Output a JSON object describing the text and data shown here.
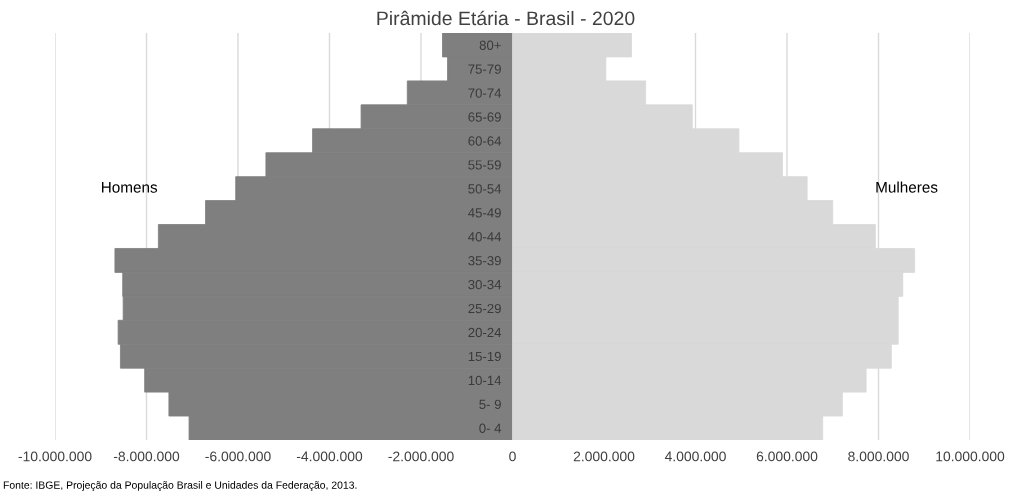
{
  "chart_data": {
    "type": "bar",
    "orientation": "horizontal",
    "stacked": true,
    "title": "Pirâmide Etária - Brasil - 2020",
    "categories": [
      "80+",
      "75-79",
      "70-74",
      "65-69",
      "60-64",
      "55-59",
      "50-54",
      "45-49",
      "40-44",
      "35-39",
      "30-34",
      "25-29",
      "20-24",
      "15-19",
      "10-14",
      "5- 9",
      "0- 4"
    ],
    "series": [
      {
        "name": "Homens",
        "color": "#7f7f7f",
        "values": [
          -1530000,
          -1420000,
          -2300000,
          -3310000,
          -4370000,
          -5390000,
          -6050000,
          -6710000,
          -7740000,
          -8690000,
          -8520000,
          -8510000,
          -8620000,
          -8570000,
          -8040000,
          -7510000,
          -7070000
        ]
      },
      {
        "name": "Mulheres",
        "color": "#d9d9d9",
        "values": [
          2600000,
          2040000,
          2910000,
          3930000,
          4950000,
          5900000,
          6440000,
          7000000,
          7930000,
          8790000,
          8530000,
          8430000,
          8430000,
          8280000,
          7730000,
          7210000,
          6780000
        ]
      }
    ],
    "xlim": [
      -10000000,
      10000000
    ],
    "xticks": [
      {
        "value": -10000000,
        "label": "-10.000.000"
      },
      {
        "value": -8000000,
        "label": "-8.000.000"
      },
      {
        "value": -6000000,
        "label": "-6.000.000"
      },
      {
        "value": -4000000,
        "label": "-4.000.000"
      },
      {
        "value": -2000000,
        "label": "-2.000.000"
      },
      0,
      {
        "value": 2000000,
        "label": "2.000.000"
      },
      {
        "value": 4000000,
        "label": "4.000.000"
      },
      {
        "value": 6000000,
        "label": "6.000.000"
      },
      {
        "value": 8000000,
        "label": "8.000.000"
      },
      {
        "value": 10000000,
        "label": "10.000.000"
      }
    ],
    "grid": "x",
    "legend": false,
    "annotations": [
      "Fonte: IBGE, Projeção da População Brasil e Unidades da Federação, 2013."
    ]
  }
}
